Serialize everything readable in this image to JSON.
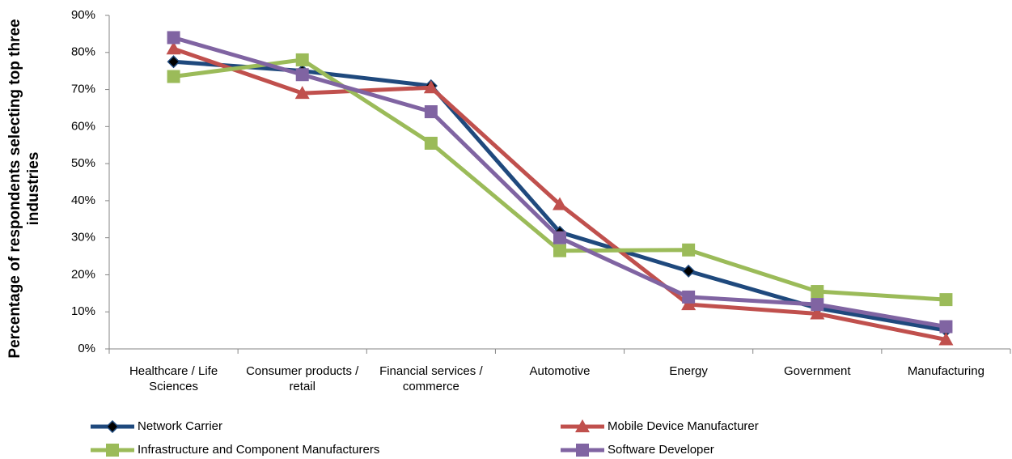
{
  "chart_data": {
    "type": "line",
    "y_label": "Percentage of respondents selecting top three industries",
    "categories": [
      "Healthcare / Life Sciences",
      "Consumer products / retail",
      "Financial services / commerce",
      "Automotive",
      "Energy",
      "Government",
      "Manufacturing"
    ],
    "series": [
      {
        "name": "Network Carrier",
        "color": "#1f497d",
        "marker": "diamond",
        "values": [
          77.5,
          75,
          71,
          31.5,
          21,
          11,
          5
        ]
      },
      {
        "name": "Mobile Device Manufacturer",
        "color": "#c0504d",
        "marker": "triangle",
        "values": [
          81,
          69,
          70.5,
          39,
          12,
          9.5,
          2.5
        ]
      },
      {
        "name": "Infrastructure and Component Manufacturers",
        "color": "#9bbb59",
        "marker": "square",
        "values": [
          73.5,
          78,
          55.5,
          26.5,
          26.7,
          15.5,
          13.3
        ]
      },
      {
        "name": "Software Developer",
        "color": "#8064a2",
        "marker": "square",
        "values": [
          84,
          74,
          64,
          30,
          14,
          12,
          6
        ]
      }
    ],
    "ylim": [
      0,
      90
    ],
    "yticks": [
      {
        "value": 0,
        "label": "0%"
      },
      {
        "value": 10,
        "label": "10%"
      },
      {
        "value": 20,
        "label": "20%"
      },
      {
        "value": 30,
        "label": "30%"
      },
      {
        "value": 40,
        "label": "40%"
      },
      {
        "value": 50,
        "label": "50%"
      },
      {
        "value": 60,
        "label": "60%"
      },
      {
        "value": 70,
        "label": "70%"
      },
      {
        "value": 80,
        "label": "80%"
      },
      {
        "value": 90,
        "label": "90%"
      }
    ],
    "grid": false,
    "legend": "bottom"
  }
}
